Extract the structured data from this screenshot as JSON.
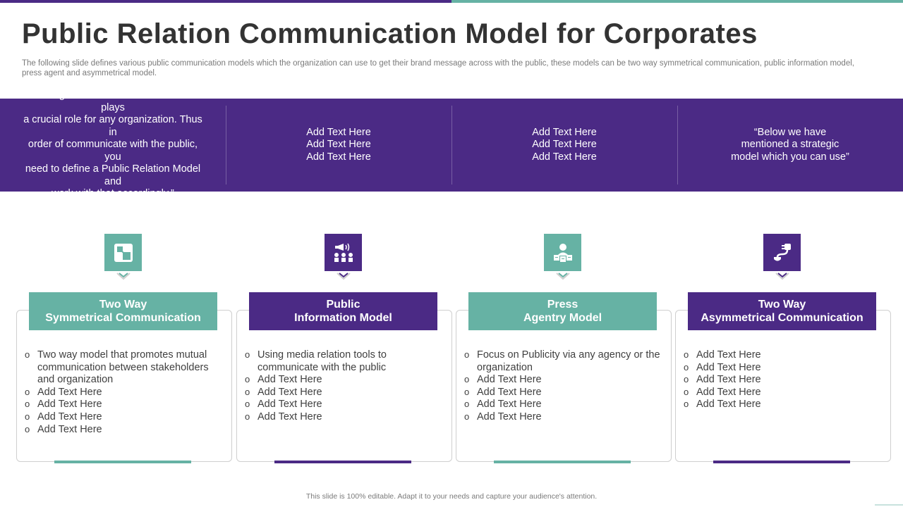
{
  "title": "Public Relation Communication Model for Corporates",
  "subtitle": "The following slide defines various public communication models which the organization can use to get their brand message across with the public, these models can be two way symmetrical communication, public information model, press agent and asymmetrical model.",
  "band": [
    "“Defining a framework in Public relation plays\na crucial role for any organization. Thus in\norder of communicate with the public, you\nneed to define a Public Relation Model and\nwork with that accordingly.”",
    "Add Text Here\nAdd Text Here\nAdd Text Here",
    "Add Text Here\nAdd Text Here\nAdd Text Here",
    "“Below we have\nmentioned a strategic\nmodel which you can use”"
  ],
  "columns": [
    {
      "heading": "Two Way\nSymmetrical Communication",
      "icon": "two-way-icon",
      "accent": "#66b2a4",
      "items": [
        "Two way model that promotes  mutual communication between stakeholders and organization",
        "Add Text Here",
        "Add Text Here",
        "Add Text Here",
        "Add Text Here"
      ]
    },
    {
      "heading": "Public\nInformation Model",
      "icon": "megaphone-audience-icon",
      "accent": "#4b2a85",
      "items": [
        "Using media relation tools to communicate with the public",
        "Add Text Here",
        "Add Text Here",
        "Add Text Here",
        "Add Text Here"
      ]
    },
    {
      "heading": "Press\nAgentry Model",
      "icon": "press-agent-icon",
      "accent": "#66b2a4",
      "items": [
        "Focus on Publicity via any agency or the organization",
        "Add Text Here",
        "Add Text Here",
        "Add Text Here",
        "Add Text Here"
      ]
    },
    {
      "heading": "Two Way\nAsymmetrical Communication",
      "icon": "plug-connection-icon",
      "accent": "#4b2a85",
      "items": [
        "Add Text Here",
        "Add Text Here",
        "Add Text Here",
        "Add Text Here",
        "Add Text Here"
      ]
    }
  ],
  "footer": "This slide is 100% editable. Adapt it to your needs and capture your audience's attention.",
  "colors": {
    "purple": "#4b2a85",
    "teal": "#66b2a4"
  }
}
